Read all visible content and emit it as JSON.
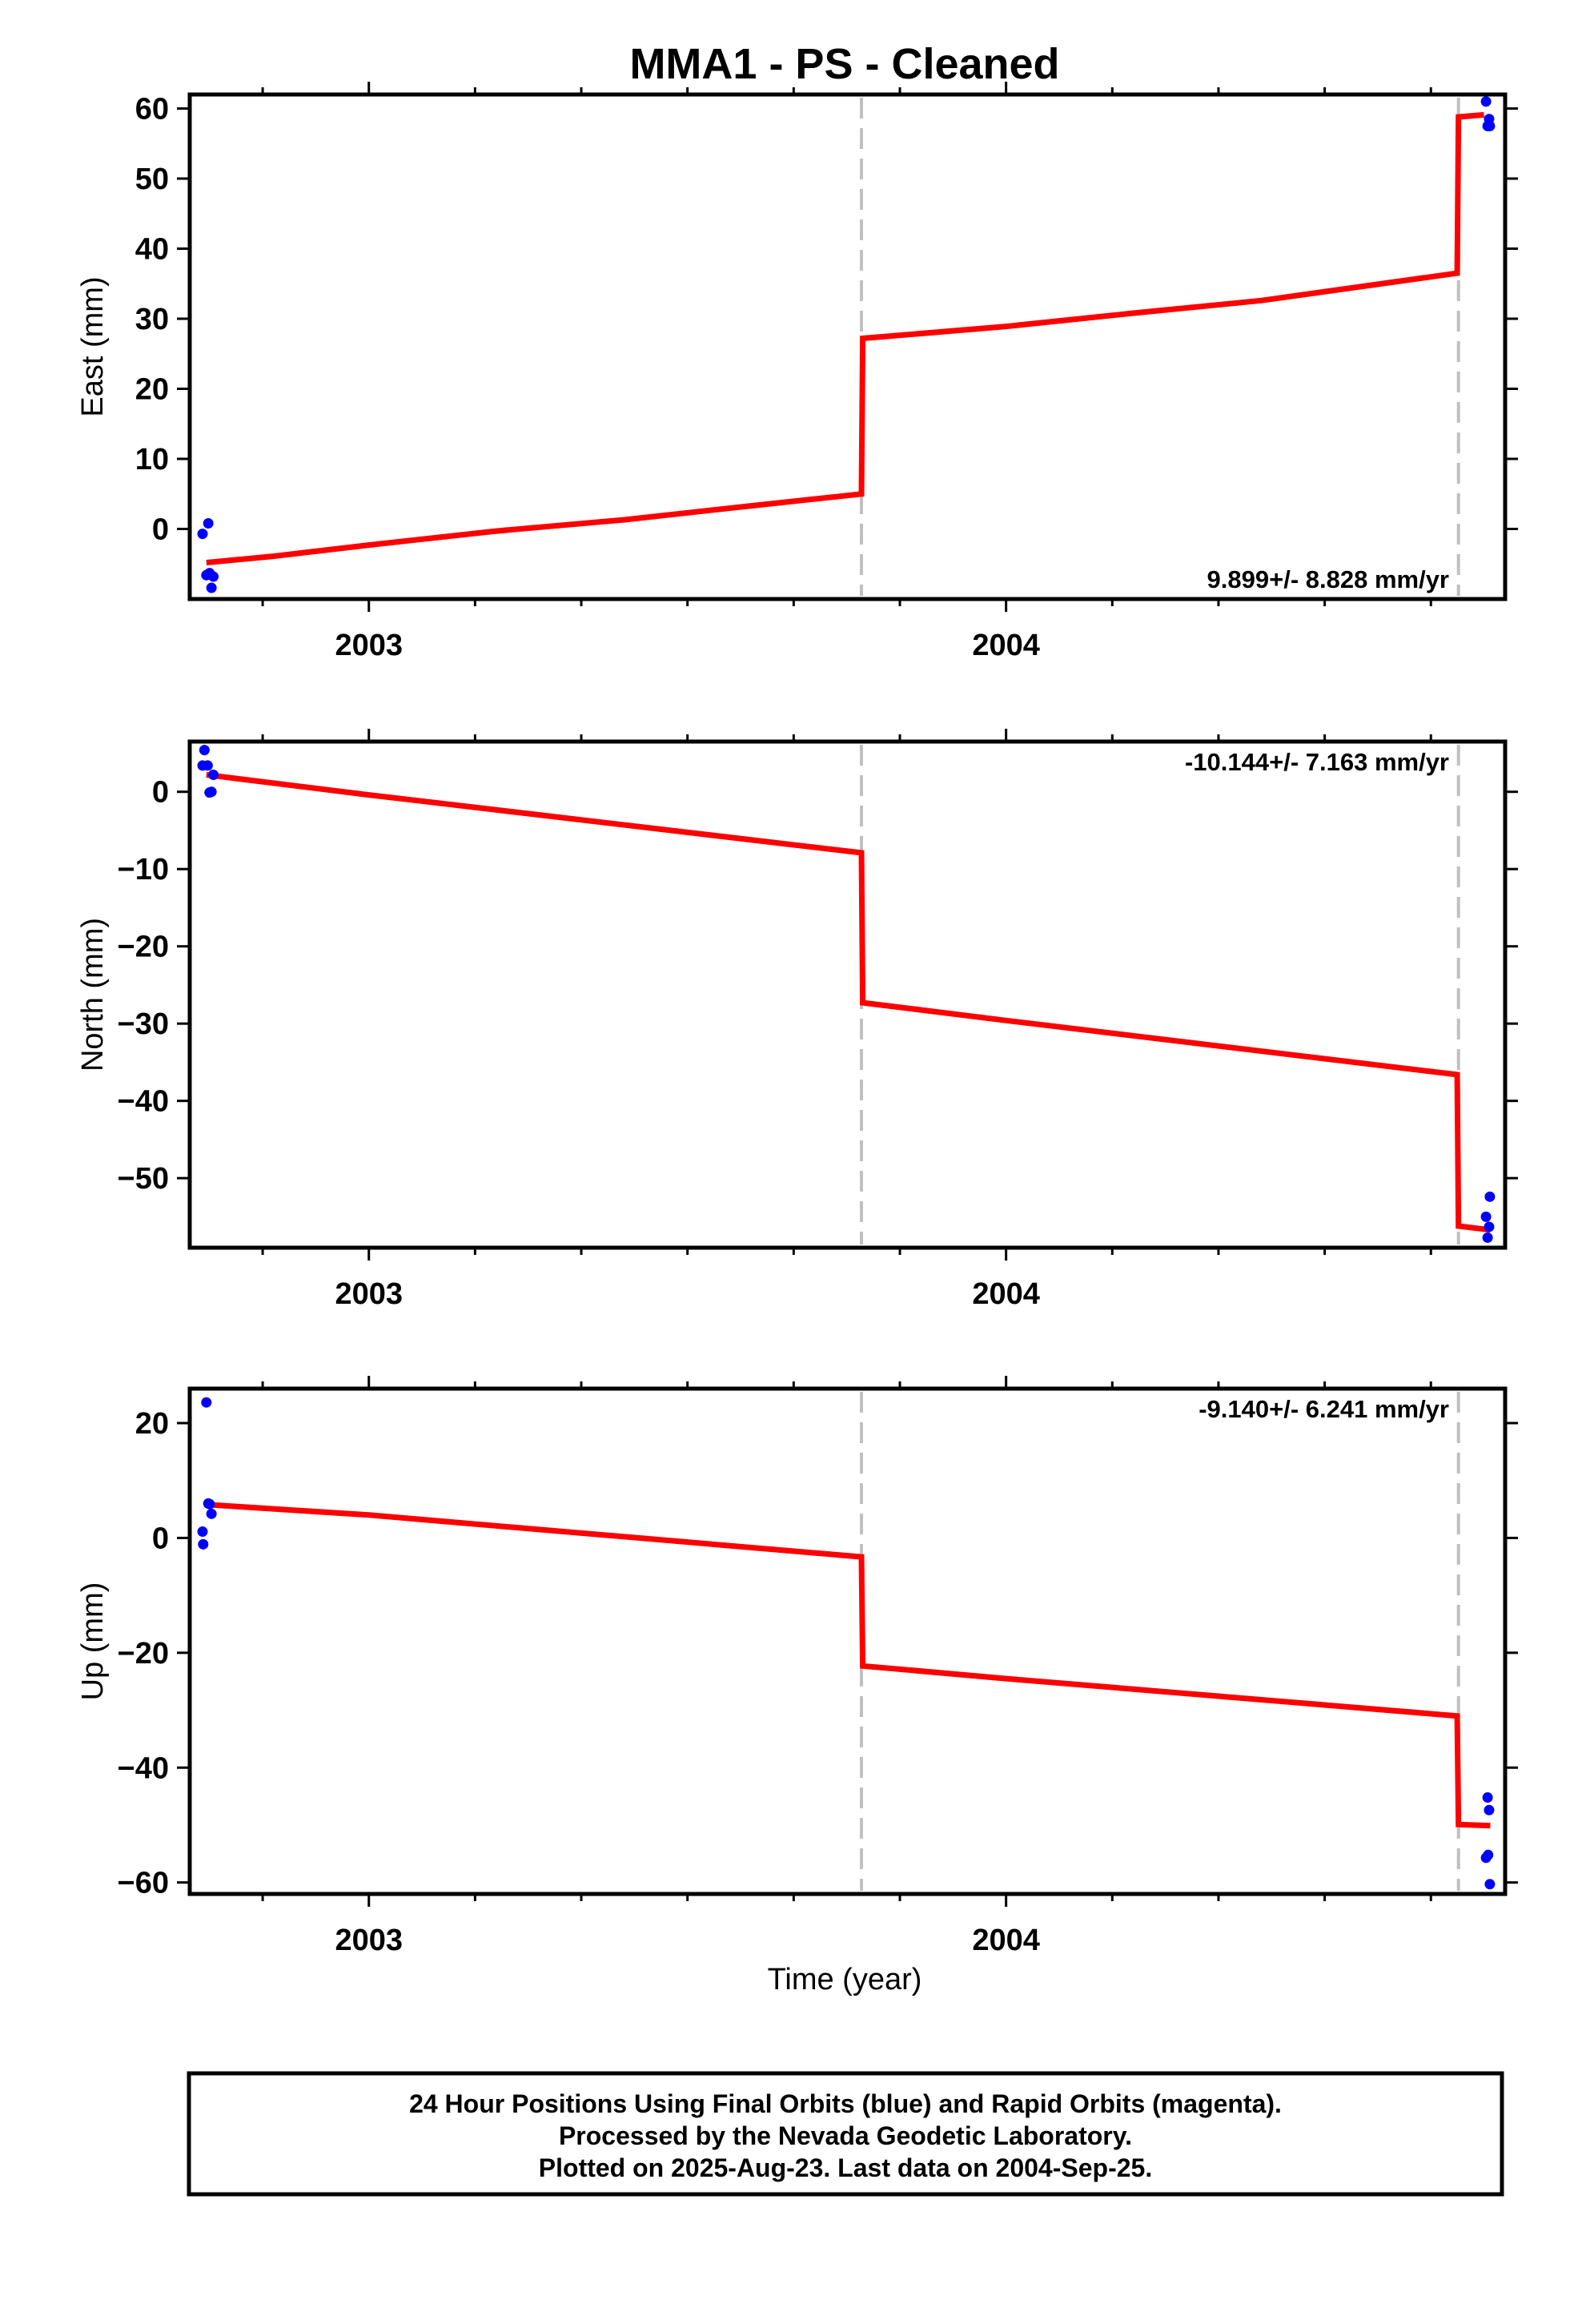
{
  "title": "MMA1  - PS - Cleaned",
  "xlabel": "Time (year)",
  "x_tick_labels": [
    "2003",
    "2004"
  ],
  "colors": {
    "final_orbits": "#0000ff",
    "model_fit": "#ff0000",
    "steps": "#c0c0c0"
  },
  "footer": {
    "line1": "24 Hour Positions Using Final Orbits (blue) and Rapid Orbits (magenta).",
    "line2": "Processed by the Nevada Geodetic Laboratory.",
    "line3": "Plotted on 2025-Aug-23. Last data on 2004-Sep-25."
  },
  "chart_data": [
    {
      "type": "scatter",
      "name": "east",
      "ylabel": "East (mm)",
      "rate": "9.899+/- 8.828 mm/yr",
      "xlim": [
        2002.7189,
        2004.7832
      ],
      "ylim": [
        -10,
        62
      ],
      "yticks": [
        0,
        10,
        20,
        30,
        40,
        50,
        60
      ],
      "steps": [
        2003.773,
        2004.71
      ],
      "series": [
        {
          "kind": "points",
          "x": [
            2002.739,
            2002.745,
            2002.748,
            2002.75,
            2002.753,
            2002.756,
            2004.7532,
            2004.7557,
            2004.758,
            2004.7592
          ],
          "y": [
            -0.7,
            -6.6,
            0.8,
            -6.3,
            -8.4,
            -6.8,
            61,
            57.5,
            58.5,
            57.5
          ]
        },
        {
          "kind": "fit",
          "x": [
            2002.745,
            2002.85,
            2003.0,
            2003.2,
            2003.4,
            2003.6,
            2003.773,
            2003.775,
            2004.0,
            2004.2,
            2004.4,
            2004.708,
            2004.71,
            2004.75
          ],
          "y": [
            -4.8,
            -3.9,
            -2.3,
            -0.3,
            1.3,
            3.3,
            5,
            27.2,
            28.9,
            30.8,
            32.6,
            36.5,
            58.8,
            59.1
          ]
        }
      ]
    },
    {
      "type": "scatter",
      "name": "north",
      "ylabel": "North (mm)",
      "rate": "-10.144+/- 7.163 mm/yr",
      "xlim": [
        2002.7189,
        2004.7832
      ],
      "ylim": [
        -59,
        6.5
      ],
      "yticks": [
        0,
        -10,
        -20,
        -30,
        -40,
        -50
      ],
      "steps": [
        2003.773,
        2004.71
      ],
      "series": [
        {
          "kind": "points",
          "x": [
            2002.739,
            2002.742,
            2002.747,
            2002.75,
            2002.753,
            2002.756,
            2004.7532,
            2004.7557,
            2004.758,
            2004.7592
          ],
          "y": [
            3.4,
            5.4,
            3.4,
            -0.1,
            0,
            2.2,
            -55,
            -57.7,
            -56.3,
            -52.4
          ]
        },
        {
          "kind": "fit",
          "x": [
            2002.745,
            2003.0,
            2003.773,
            2003.775,
            2004.0,
            2004.708,
            2004.71,
            2004.76
          ],
          "y": [
            2.2,
            -0.4,
            -7.9,
            -27.3,
            -29.6,
            -36.6,
            -56.2,
            -56.7
          ]
        }
      ]
    },
    {
      "type": "scatter",
      "name": "up",
      "ylabel": "Up (mm)",
      "rate": "-9.140+/- 6.241 mm/yr",
      "xlim": [
        2002.7189,
        2004.7832
      ],
      "ylim": [
        -62,
        26
      ],
      "yticks": [
        20,
        0,
        -20,
        -40,
        -60
      ],
      "steps": [
        2003.773,
        2004.71
      ],
      "series": [
        {
          "kind": "points",
          "x": [
            2002.739,
            2002.74,
            2002.745,
            2002.748,
            2002.75,
            2002.753,
            2004.7532,
            2004.7557,
            2004.758,
            2004.7592,
            2004.7565
          ],
          "y": [
            1.1,
            -1.1,
            23.6,
            6,
            5.9,
            4.2,
            -55.7,
            -45.2,
            -47.4,
            -60.3,
            -55.2
          ]
        },
        {
          "kind": "fit",
          "x": [
            2002.745,
            2003.0,
            2003.773,
            2003.775,
            2004.0,
            2004.708,
            2004.71,
            2004.76
          ],
          "y": [
            5.8,
            4,
            -3.3,
            -22.3,
            -24.5,
            -31,
            -49.9,
            -50.1
          ]
        }
      ]
    }
  ]
}
